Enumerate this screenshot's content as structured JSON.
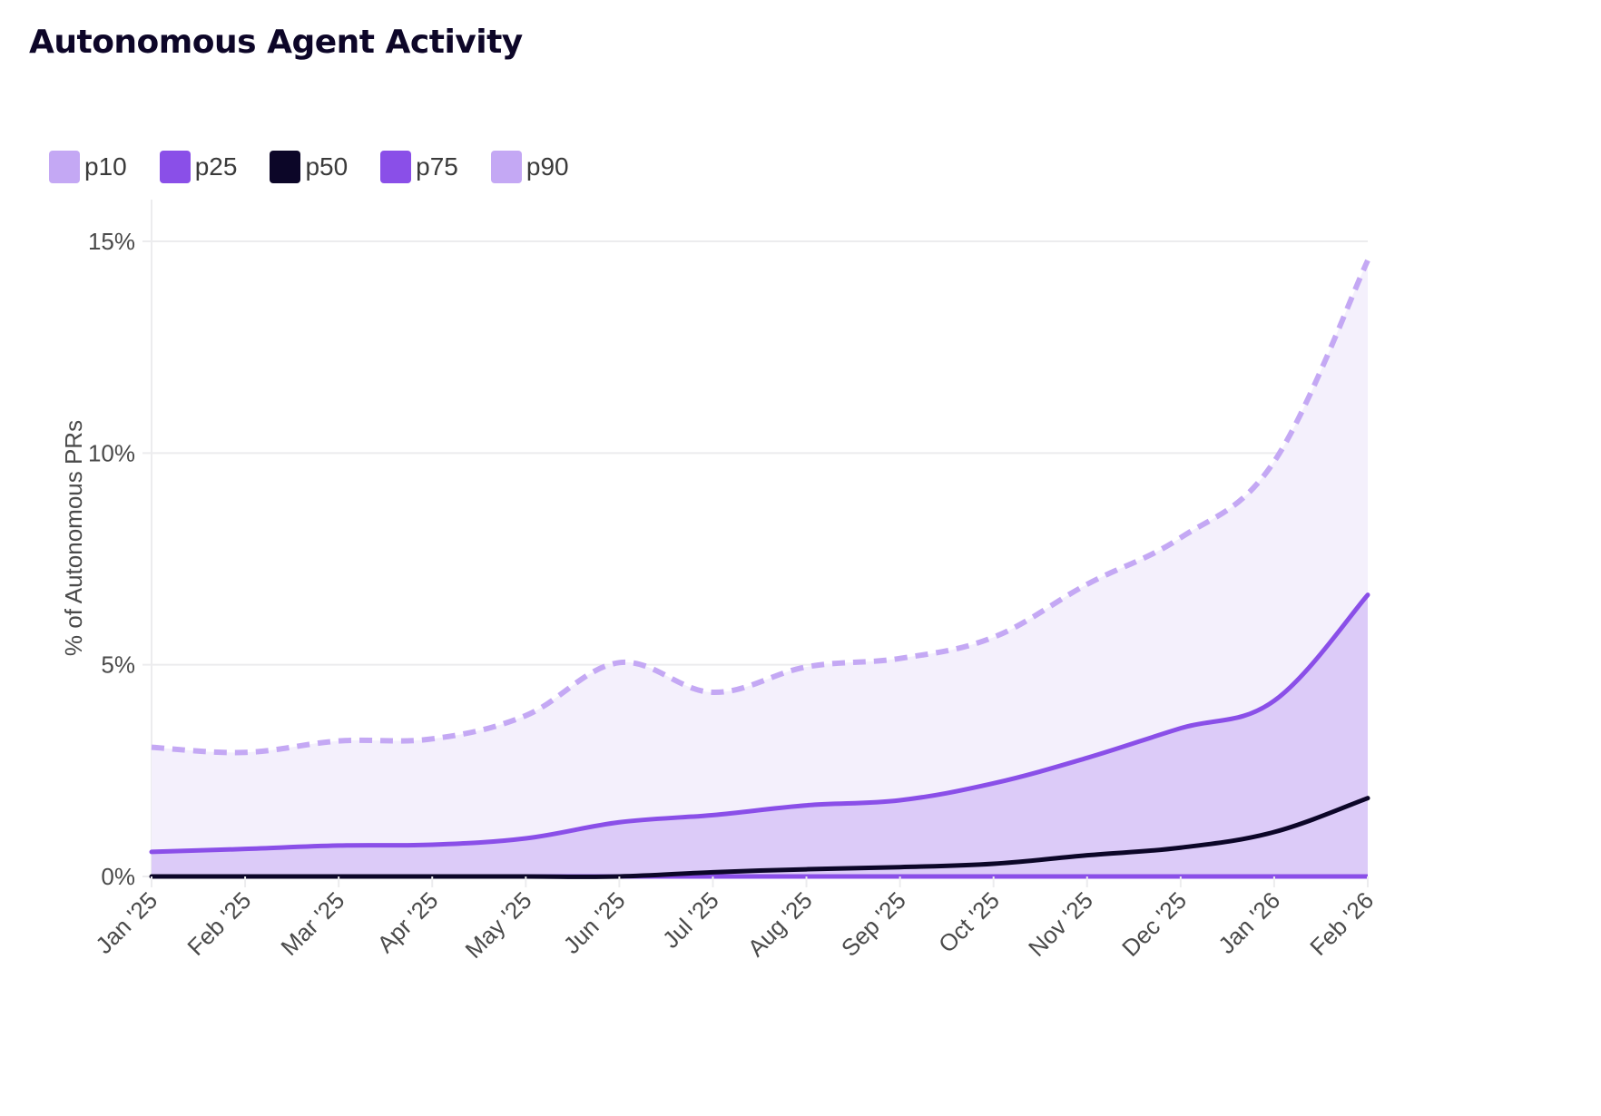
{
  "title": "Autonomous Agent Activity",
  "colors": {
    "p10": "#c4a8f4",
    "p25": "#8a4fe8",
    "p50": "#0c0628",
    "p75": "#8a4fe8",
    "p90": "#c4a8f4",
    "band_outer": "#f4f0fc",
    "band_inner": "#dccbf8",
    "grid": "#ececee"
  },
  "legend": [
    {
      "key": "p10",
      "label": "p10"
    },
    {
      "key": "p25",
      "label": "p25"
    },
    {
      "key": "p50",
      "label": "p50"
    },
    {
      "key": "p75",
      "label": "p75"
    },
    {
      "key": "p90",
      "label": "p90"
    }
  ],
  "chart_data": {
    "type": "area",
    "title": "Autonomous Agent Activity",
    "xlabel": "",
    "ylabel": "% of Autonomous PRs",
    "ylim": [
      0,
      16
    ],
    "yticks": [
      0,
      5,
      10,
      15
    ],
    "ytick_labels": [
      "0%",
      "5%",
      "10%",
      "15%"
    ],
    "grid": true,
    "legend_position": "top-left",
    "categories": [
      "Jan '25",
      "Feb '25",
      "Mar '25",
      "Apr '25",
      "May '25",
      "Jun '25",
      "Jul '25",
      "Aug '25",
      "Sep '25",
      "Oct '25",
      "Nov '25",
      "Dec '25",
      "Jan '26",
      "Feb '26"
    ],
    "series": [
      {
        "name": "p10",
        "style": "solid",
        "values": [
          0,
          0,
          0,
          0,
          0,
          0,
          0,
          0,
          0,
          0,
          0,
          0,
          0,
          0
        ]
      },
      {
        "name": "p25",
        "style": "solid",
        "values": [
          0,
          0,
          0,
          0,
          0,
          0,
          0,
          0,
          0,
          0,
          0,
          0,
          0,
          0
        ]
      },
      {
        "name": "p50",
        "style": "solid",
        "values": [
          0,
          0,
          0,
          0,
          0,
          0,
          0.1,
          0.17,
          0.22,
          0.3,
          0.5,
          0.68,
          1.05,
          1.85
        ]
      },
      {
        "name": "p75",
        "style": "solid",
        "values": [
          0.58,
          0.65,
          0.73,
          0.75,
          0.9,
          1.28,
          1.45,
          1.68,
          1.8,
          2.2,
          2.8,
          3.5,
          4.15,
          6.65
        ]
      },
      {
        "name": "p90",
        "style": "dashed",
        "values": [
          3.05,
          2.93,
          3.2,
          3.25,
          3.8,
          5.05,
          4.35,
          4.95,
          5.15,
          5.65,
          6.9,
          8.0,
          9.8,
          14.55
        ]
      }
    ]
  }
}
